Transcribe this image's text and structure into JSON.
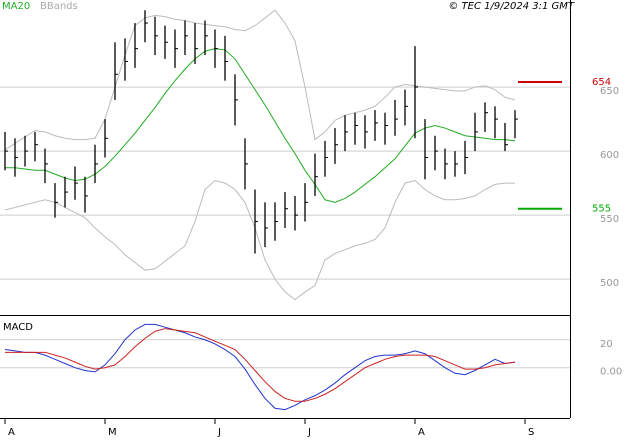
{
  "chart_data": {
    "type": "ohlc",
    "copyright": "© TEC 1/9/2024 3:1 GMT",
    "categories": [
      "A",
      null,
      null,
      null,
      null,
      null,
      null,
      null,
      null,
      null,
      "M",
      null,
      null,
      null,
      null,
      null,
      null,
      null,
      null,
      null,
      null,
      "J",
      null,
      null,
      null,
      null,
      null,
      null,
      null,
      null,
      "J",
      null,
      null,
      null,
      null,
      null,
      null,
      null,
      null,
      null,
      null,
      "A",
      null,
      null,
      null,
      null,
      null,
      null,
      null,
      null,
      null,
      null,
      "S"
    ],
    "bar_color": "#000000",
    "high": [
      615,
      610,
      612,
      615,
      602,
      575,
      580,
      588,
      580,
      605,
      625,
      685,
      688,
      700,
      710,
      705,
      698,
      695,
      702,
      700,
      702,
      695,
      690,
      660,
      610,
      570,
      560,
      560,
      568,
      565,
      575,
      598,
      608,
      618,
      628,
      630,
      628,
      632,
      630,
      640,
      648,
      682,
      625,
      612,
      602,
      600,
      608,
      630,
      638,
      635,
      622,
      632,
      null
    ],
    "low": [
      585,
      580,
      588,
      592,
      575,
      548,
      556,
      562,
      552,
      575,
      595,
      640,
      655,
      665,
      685,
      675,
      672,
      665,
      675,
      668,
      675,
      665,
      655,
      620,
      570,
      520,
      525,
      530,
      540,
      538,
      545,
      565,
      580,
      590,
      600,
      605,
      602,
      608,
      605,
      612,
      620,
      610,
      578,
      585,
      578,
      580,
      582,
      600,
      615,
      610,
      600,
      610,
      null
    ],
    "close": [
      600,
      595,
      600,
      605,
      590,
      560,
      568,
      575,
      565,
      590,
      610,
      660,
      670,
      680,
      700,
      690,
      685,
      680,
      690,
      680,
      690,
      680,
      670,
      640,
      590,
      545,
      540,
      545,
      555,
      550,
      560,
      580,
      595,
      605,
      615,
      620,
      615,
      622,
      620,
      625,
      635,
      650,
      595,
      600,
      590,
      590,
      595,
      615,
      630,
      625,
      605,
      625,
      null
    ],
    "series": [
      {
        "name": "MA20",
        "color": "#22aa22",
        "values": [
          587,
          587,
          586,
          585,
          585,
          582,
          579,
          577,
          578,
          582,
          588,
          596,
          605,
          614,
          624,
          634,
          645,
          655,
          664,
          672,
          678,
          680,
          679,
          672,
          660,
          648,
          636,
          623,
          610,
          598,
          585,
          574,
          562,
          560,
          563,
          568,
          574,
          580,
          587,
          594,
          604,
          614,
          618,
          620,
          618,
          615,
          612,
          611,
          610,
          609,
          609,
          608,
          null
        ]
      },
      {
        "name": "BBands",
        "color": "#bbbbbb",
        "upper": [
          601,
          606,
          611,
          616,
          615,
          612,
          610,
          609,
          609,
          610,
          625,
          650,
          675,
          698,
          704,
          706,
          705,
          703,
          702,
          700,
          699,
          698,
          697,
          695,
          694,
          698,
          704,
          710,
          700,
          686,
          650,
          609,
          615,
          624,
          628,
          630,
          632,
          635,
          642,
          650,
          652,
          651,
          650,
          649,
          648,
          647,
          647,
          650,
          651,
          648,
          642,
          640,
          null
        ],
        "lower": [
          554,
          556,
          558,
          560,
          562,
          560,
          556,
          552,
          548,
          540,
          533,
          527,
          519,
          513,
          507,
          508,
          514,
          520,
          526,
          545,
          570,
          577,
          575,
          570,
          560,
          540,
          515,
          500,
          490,
          484,
          490,
          495,
          515,
          520,
          523,
          526,
          528,
          531,
          540,
          560,
          575,
          577,
          570,
          565,
          562,
          562,
          563,
          565,
          570,
          574,
          575,
          575,
          null
        ]
      }
    ],
    "levels": [
      {
        "value": 654,
        "color": "#cc0000"
      },
      {
        "value": 555,
        "color": "#00aa00"
      }
    ],
    "ylim": [
      472,
      718
    ],
    "yticks": [
      500,
      550,
      600,
      650
    ],
    "grid": true,
    "macd": {
      "title": "MACD",
      "series": [
        {
          "color": "#2233cc",
          "values": [
            13,
            12,
            11,
            11,
            9,
            6,
            3,
            0,
            -2,
            -3,
            2,
            10,
            20,
            27,
            31,
            31,
            29,
            27,
            25,
            22,
            20,
            17,
            13,
            8,
            -1,
            -12,
            -22,
            -29,
            -30,
            -27,
            -23,
            -20,
            -16,
            -11,
            -5,
            0,
            5,
            8,
            9,
            9,
            10,
            12,
            10,
            5,
            0,
            -4,
            -5,
            -2,
            2,
            6,
            3,
            4,
            null
          ]
        },
        {
          "color": "#cc2222",
          "values": [
            11,
            11,
            11,
            11,
            11,
            9,
            7,
            4,
            1,
            -1,
            0,
            2,
            8,
            15,
            21,
            26,
            28,
            27,
            26,
            25,
            22,
            19,
            16,
            13,
            6,
            -2,
            -10,
            -17,
            -22,
            -24,
            -24,
            -22,
            -19,
            -15,
            -10,
            -5,
            0,
            3,
            6,
            8,
            9,
            9,
            9,
            8,
            5,
            2,
            -1,
            -1,
            0,
            2,
            3,
            4,
            null
          ]
        }
      ],
      "ylim": [
        -36,
        37
      ],
      "yticks": [
        {
          "value": 0,
          "label": "0.00"
        },
        20
      ]
    }
  }
}
